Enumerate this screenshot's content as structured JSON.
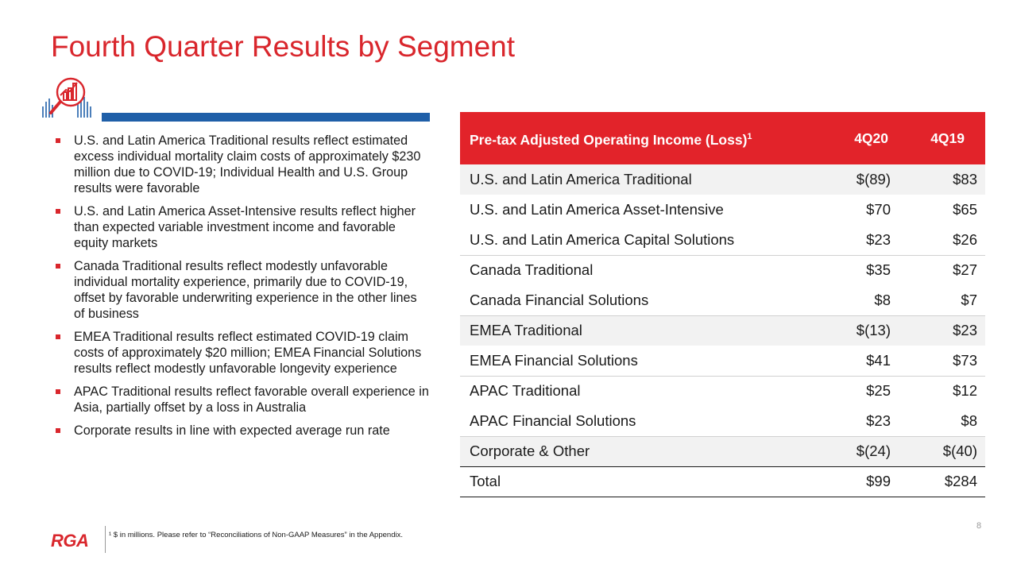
{
  "title": "Fourth Quarter Results by Segment",
  "bullets": [
    "U.S. and Latin America Traditional results reflect estimated excess individual mortality claim costs of approximately $230 million due to COVID-19; Individual Health and U.S. Group results were favorable",
    "U.S. and Latin America Asset-Intensive results reflect higher than expected variable investment income and favorable equity markets",
    "Canada Traditional results reflect modestly unfavorable individual mortality experience, primarily due to COVID-19, offset by favorable underwriting experience in the other lines of business",
    "EMEA Traditional results reflect estimated COVID-19 claim costs of approximately $20 million; EMEA Financial Solutions results reflect modestly unfavorable longevity experience",
    "APAC Traditional results reflect favorable overall experience in Asia, partially offset by a loss in Australia",
    "Corporate results in line with expected average run rate"
  ],
  "table": {
    "header": {
      "segment": "Pre-tax Adjusted Operating Income (Loss)",
      "segment_sup": "1",
      "col1": "4Q20",
      "col2": "4Q19"
    },
    "rows": [
      {
        "segment": "U.S. and Latin America Traditional",
        "q20": "$(89)",
        "q19": "$83"
      },
      {
        "segment": "U.S. and Latin America Asset-Intensive",
        "q20": "$70",
        "q19": "$65"
      },
      {
        "segment": "U.S. and Latin America Capital Solutions",
        "q20": "$23",
        "q19": "$26"
      },
      {
        "segment": "Canada Traditional",
        "q20": "$35",
        "q19": "$27"
      },
      {
        "segment": "Canada Financial Solutions",
        "q20": "$8",
        "q19": "$7"
      },
      {
        "segment": "EMEA Traditional",
        "q20": "$(13)",
        "q19": "$23"
      },
      {
        "segment": "EMEA Financial Solutions",
        "q20": "$41",
        "q19": "$73"
      },
      {
        "segment": "APAC Traditional",
        "q20": "$25",
        "q19": "$12"
      },
      {
        "segment": "APAC Financial Solutions",
        "q20": "$23",
        "q19": "$8"
      },
      {
        "segment": "Corporate & Other",
        "q20": "$(24)",
        "q19": "$(40)"
      },
      {
        "segment": "Total",
        "q20": "$99",
        "q19": "$284"
      }
    ]
  },
  "footer": {
    "logo_text": "RGA",
    "footnote": "¹ $ in millions. Please refer to “Reconciliations of Non-GAAP Measures” in the Appendix.",
    "page_number": "8"
  },
  "colors": {
    "accent_red": "#e2232a",
    "title_red": "#d9262c",
    "accent_blue": "#1f5fa8"
  },
  "icons": [
    "magnifier-chart-icon"
  ]
}
